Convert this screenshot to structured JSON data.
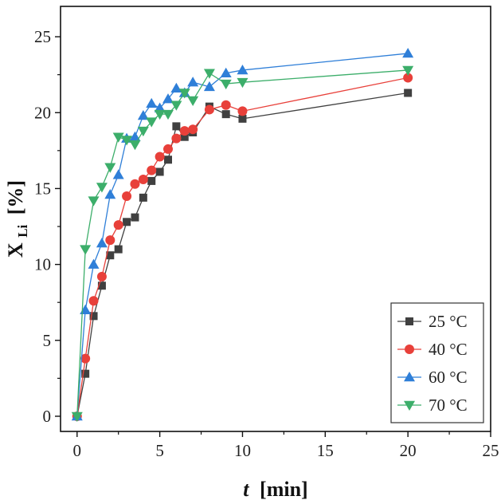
{
  "chart_data": {
    "type": "line",
    "title": "",
    "xlabel_var": "t",
    "xlabel_unit": "[min]",
    "ylabel_var": "X",
    "ylabel_sub": "Li",
    "ylabel_unit": "[%]",
    "xlim": [
      -1,
      25
    ],
    "ylim": [
      -1,
      27
    ],
    "xticks": [
      0,
      5,
      10,
      15,
      20,
      25
    ],
    "yticks": [
      0,
      5,
      10,
      15,
      20,
      25
    ],
    "grid": false,
    "legend_position": "bottom-right",
    "series": [
      {
        "name": "25 °C",
        "color": "#404040",
        "marker": "square",
        "x": [
          0,
          0.5,
          1,
          1.5,
          2,
          2.5,
          3,
          3.5,
          4,
          4.5,
          5,
          5.5,
          6,
          6.5,
          7,
          8,
          9,
          10,
          20
        ],
        "y": [
          0,
          2.8,
          6.6,
          8.6,
          10.6,
          11.0,
          12.8,
          13.1,
          14.4,
          15.5,
          16.1,
          16.9,
          19.1,
          18.4,
          18.7,
          20.4,
          19.9,
          19.6,
          21.3
        ]
      },
      {
        "name": "40 °C",
        "color": "#e8403a",
        "marker": "circle",
        "x": [
          0,
          0.5,
          1,
          1.5,
          2,
          2.5,
          3,
          3.5,
          4,
          4.5,
          5,
          5.5,
          6,
          6.5,
          7,
          8,
          9,
          10,
          20
        ],
        "y": [
          0,
          3.8,
          7.6,
          9.2,
          11.6,
          12.6,
          14.5,
          15.3,
          15.6,
          16.2,
          17.1,
          17.6,
          18.3,
          18.8,
          18.9,
          20.2,
          20.5,
          20.1,
          22.3
        ]
      },
      {
        "name": "60 °C",
        "color": "#2f7fd8",
        "marker": "triangle-up",
        "x": [
          0,
          0.5,
          1,
          1.5,
          2,
          2.5,
          3,
          3.5,
          4,
          4.5,
          5,
          5.5,
          6,
          6.5,
          7,
          8,
          9,
          10,
          20
        ],
        "y": [
          0,
          7.0,
          10.0,
          11.4,
          14.6,
          15.9,
          18.3,
          18.4,
          19.8,
          20.6,
          20.3,
          20.9,
          21.6,
          21.3,
          22.0,
          21.7,
          22.6,
          22.8,
          23.9
        ]
      },
      {
        "name": "70 °C",
        "color": "#3cae6a",
        "marker": "triangle-down",
        "x": [
          0,
          0.5,
          1,
          1.5,
          2,
          2.5,
          3,
          3.5,
          4,
          4.5,
          5,
          5.5,
          6,
          6.5,
          7,
          8,
          9,
          10,
          20
        ],
        "y": [
          0,
          11.0,
          14.2,
          15.1,
          16.4,
          18.4,
          18.2,
          17.9,
          18.8,
          19.4,
          19.9,
          19.9,
          20.5,
          21.3,
          20.8,
          22.6,
          21.9,
          22.0,
          22.8
        ]
      }
    ]
  }
}
